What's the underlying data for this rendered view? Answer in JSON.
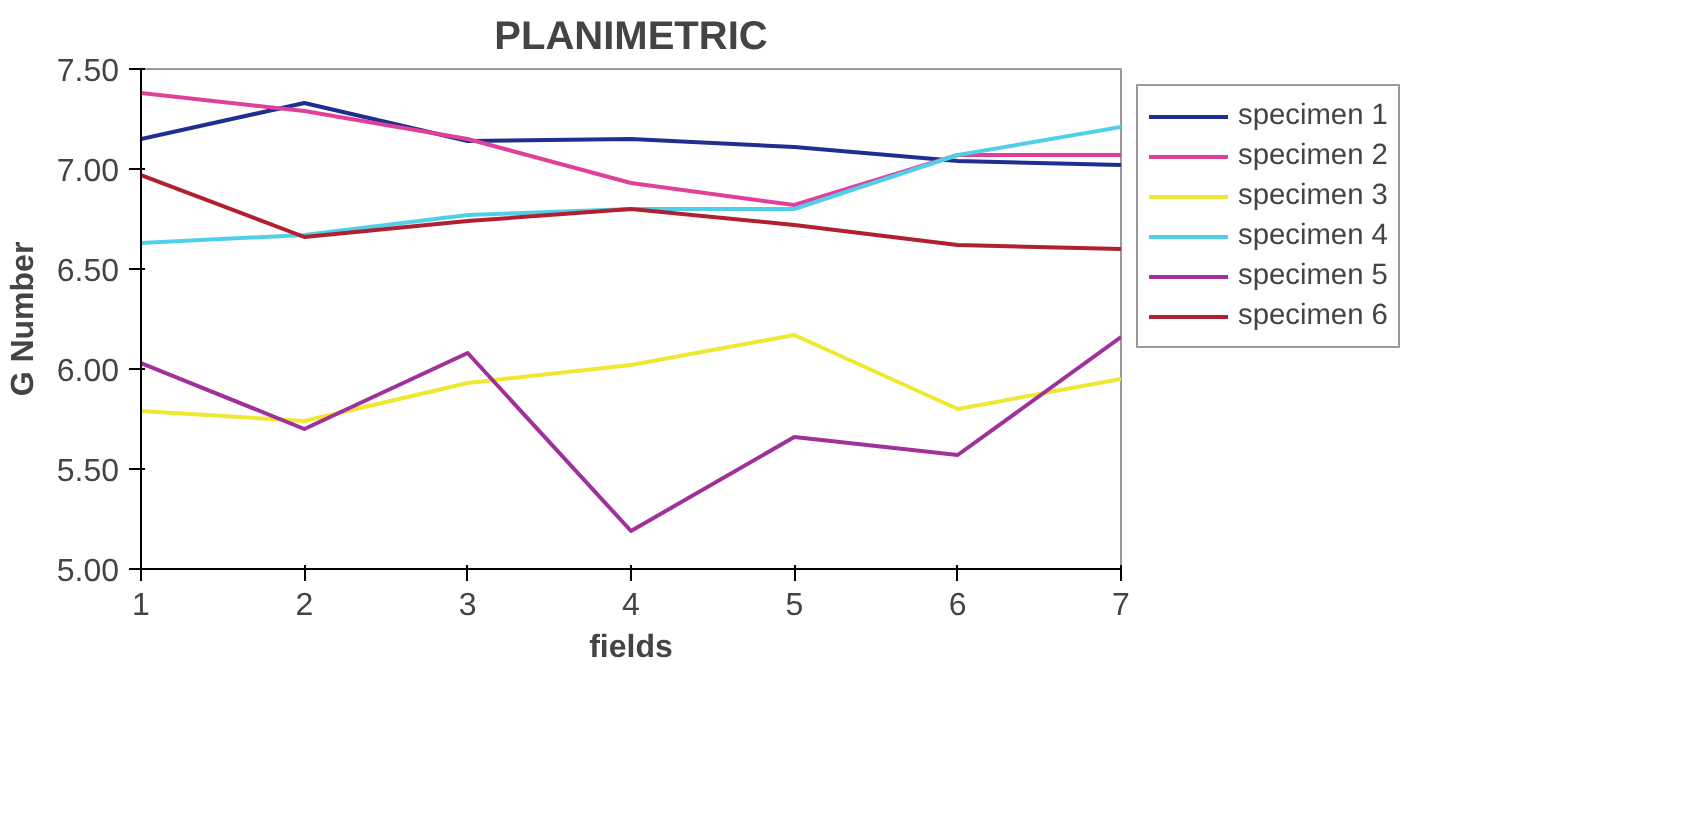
{
  "chart_data": {
    "type": "line",
    "title": "PLANIMETRIC",
    "xlabel": "fields",
    "ylabel": "G Number",
    "x": [
      1,
      2,
      3,
      4,
      5,
      6,
      7
    ],
    "xlim": [
      1,
      7
    ],
    "xticks": [
      1,
      2,
      3,
      4,
      5,
      6,
      7
    ],
    "ylim": [
      5,
      7.5
    ],
    "yticks": [
      {
        "value": 5,
        "label": "5.00"
      },
      {
        "value": 5.5,
        "label": "5.50"
      },
      {
        "value": 6,
        "label": "6.00"
      },
      {
        "value": 6.5,
        "label": "6.50"
      },
      {
        "value": 7,
        "label": "7.00"
      },
      {
        "value": 7.5,
        "label": "7.50"
      }
    ],
    "grid": false,
    "legend": "right",
    "marker": "none",
    "line_style": "solid",
    "series": [
      {
        "name": "specimen 1",
        "color": "#1f2f8f",
        "values": [
          7.15,
          7.33,
          7.14,
          7.15,
          7.11,
          7.04,
          7.02
        ]
      },
      {
        "name": "specimen 2",
        "color": "#e0409a",
        "values": [
          7.38,
          7.29,
          7.15,
          6.93,
          6.82,
          7.07,
          7.07
        ]
      },
      {
        "name": "specimen 3",
        "color": "#f0e830",
        "values": [
          5.79,
          5.74,
          5.93,
          6.02,
          6.17,
          5.8,
          5.95
        ]
      },
      {
        "name": "specimen 4",
        "color": "#50d0e8",
        "values": [
          6.63,
          6.67,
          6.77,
          6.8,
          6.8,
          7.07,
          7.21
        ]
      },
      {
        "name": "specimen 5",
        "color": "#a0309a",
        "values": [
          6.03,
          5.7,
          6.08,
          5.19,
          5.66,
          5.57,
          6.16
        ]
      },
      {
        "name": "specimen 6",
        "color": "#b02030",
        "values": [
          6.97,
          6.66,
          6.74,
          6.8,
          6.72,
          6.62,
          6.6
        ]
      }
    ]
  }
}
